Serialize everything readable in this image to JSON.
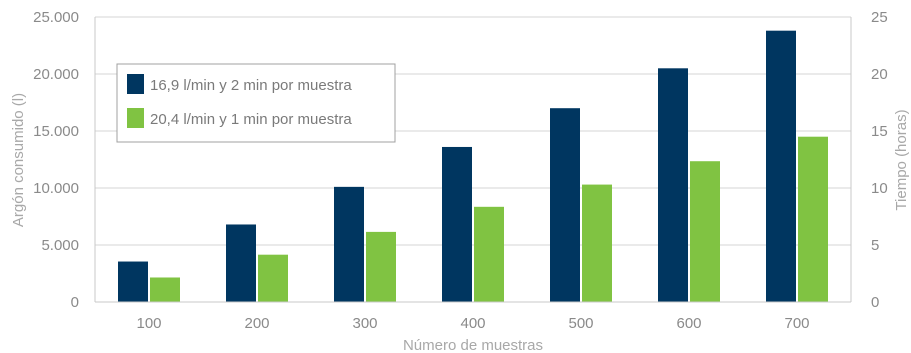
{
  "chart_data": {
    "type": "bar",
    "categories": [
      "100",
      "200",
      "300",
      "400",
      "500",
      "600",
      "700"
    ],
    "series": [
      {
        "name": "16,9 l/min y 2 min por muestra",
        "color": "#003660",
        "values": [
          3550,
          6800,
          10100,
          13600,
          17000,
          20500,
          23800
        ]
      },
      {
        "name": "20,4 l/min y 1 min por muestra",
        "color": "#80c342",
        "values": [
          2150,
          4150,
          6150,
          8350,
          10300,
          12350,
          14500
        ]
      }
    ],
    "xlabel": "Número de muestras",
    "ylabel": "Argón consumido (l)",
    "y2label": "Tiempo (horas)",
    "ylim": [
      0,
      25000
    ],
    "y2lim": [
      0,
      25
    ],
    "yticks": [
      "0",
      "5.000",
      "10.000",
      "15.000",
      "20.000",
      "25.000"
    ],
    "y2ticks": [
      "0",
      "5",
      "10",
      "15",
      "20",
      "25"
    ],
    "grid": true,
    "legend_position": "top-left"
  }
}
